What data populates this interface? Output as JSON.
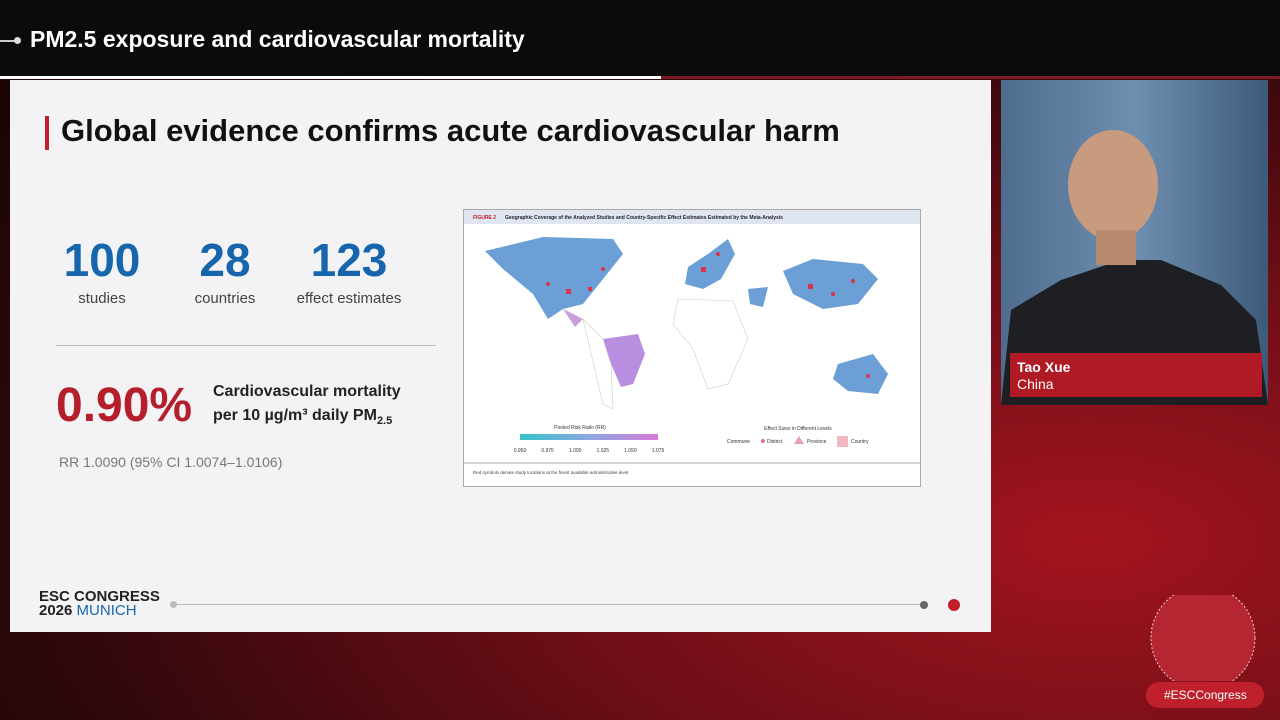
{
  "header": {
    "title": "PM2.5 exposure and cardiovascular mortality"
  },
  "slide": {
    "title": "Global evidence confirms acute cardiovascular harm",
    "stats": [
      {
        "value": "100",
        "label": "studies"
      },
      {
        "value": "28",
        "label": "countries"
      },
      {
        "value": "123",
        "label": "effect estimates"
      }
    ],
    "highlight": {
      "value": "0.90%",
      "line1": "Cardiovascular mortality",
      "line2": "per 10 µg/m³ daily PM",
      "subscript": "2.5"
    },
    "note": "RR 1.0090 (95% CI 1.0074–1.0106)",
    "figure": {
      "label": "FIGURE 2",
      "title": "Geographic Coverage of the Analyzed Studies and Country-Specific Effect Estimates Estimated by the Meta-Analysis",
      "legend_title": "Pooled Risk Ratio (RR)",
      "legend_ticks": [
        "0.950",
        "0.975",
        "1.000",
        "1.025",
        "1.050",
        "1.075"
      ],
      "levels_title": "Effect Sizes in Different Levels",
      "levels": [
        "Commune",
        "District",
        "Province",
        "Country"
      ],
      "caption": "Red symbols denote study locations at the finest available administrative level."
    },
    "logo": {
      "line1": "ESC CONGRESS",
      "year": "2026",
      "city": "MUNICH"
    }
  },
  "speaker": {
    "name": "Tao Xue",
    "country": "China"
  },
  "hashtag": "#ESCCongress"
}
